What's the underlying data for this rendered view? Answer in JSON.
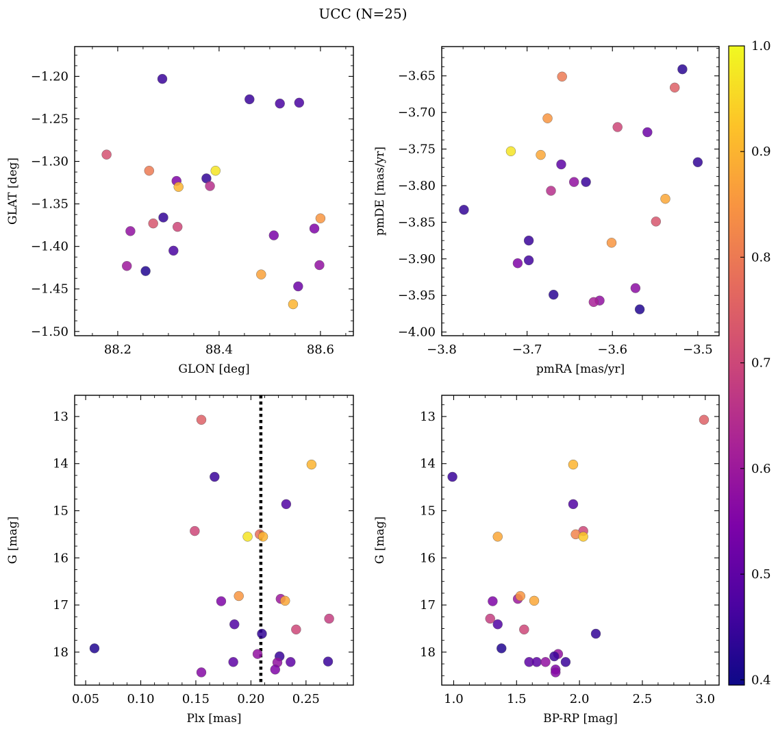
{
  "figure": {
    "title": "UCC (N=25)"
  },
  "colorbar": {
    "range": [
      0.395,
      1.0
    ],
    "ticks": [
      0.4,
      0.5,
      0.6,
      0.7,
      0.8,
      0.9,
      1.0
    ],
    "tick_labels": [
      "0.4",
      "0.5",
      "0.6",
      "0.7",
      "0.8",
      "0.9",
      "1.0"
    ],
    "colormap": "plasma"
  },
  "chart_data": [
    {
      "type": "scatter",
      "xlabel": "GLON [deg]",
      "ylabel": "GLAT [deg]",
      "xlim": [
        88.115,
        88.665
      ],
      "ylim": [
        -1.505,
        -1.165
      ],
      "y_inverted": false,
      "xticks": [
        88.2,
        88.4,
        88.6
      ],
      "xtick_labels": [
        "88.2",
        "88.4",
        "88.6"
      ],
      "yticks": [
        -1.5,
        -1.45,
        -1.4,
        -1.35,
        -1.3,
        -1.25,
        -1.2
      ],
      "ytick_labels": [
        "−1.50",
        "−1.45",
        "−1.40",
        "−1.35",
        "−1.30",
        "−1.25",
        "−1.20"
      ],
      "points": [
        {
          "x": 88.288,
          "y": -1.203,
          "c": 0.45
        },
        {
          "x": 88.46,
          "y": -1.227,
          "c": 0.45
        },
        {
          "x": 88.52,
          "y": -1.232,
          "c": 0.47
        },
        {
          "x": 88.558,
          "y": -1.231,
          "c": 0.47
        },
        {
          "x": 88.178,
          "y": -1.292,
          "c": 0.72
        },
        {
          "x": 88.262,
          "y": -1.311,
          "c": 0.8
        },
        {
          "x": 88.393,
          "y": -1.311,
          "c": 0.97
        },
        {
          "x": 88.316,
          "y": -1.323,
          "c": 0.55
        },
        {
          "x": 88.375,
          "y": -1.32,
          "c": 0.44
        },
        {
          "x": 88.32,
          "y": -1.33,
          "c": 0.9
        },
        {
          "x": 88.382,
          "y": -1.329,
          "c": 0.65
        },
        {
          "x": 88.29,
          "y": -1.366,
          "c": 0.44
        },
        {
          "x": 88.27,
          "y": -1.373,
          "c": 0.73
        },
        {
          "x": 88.318,
          "y": -1.377,
          "c": 0.7
        },
        {
          "x": 88.225,
          "y": -1.382,
          "c": 0.58
        },
        {
          "x": 88.588,
          "y": -1.379,
          "c": 0.55
        },
        {
          "x": 88.6,
          "y": -1.367,
          "c": 0.85
        },
        {
          "x": 88.508,
          "y": -1.387,
          "c": 0.54
        },
        {
          "x": 88.31,
          "y": -1.405,
          "c": 0.47
        },
        {
          "x": 88.218,
          "y": -1.423,
          "c": 0.6
        },
        {
          "x": 88.255,
          "y": -1.429,
          "c": 0.42
        },
        {
          "x": 88.598,
          "y": -1.422,
          "c": 0.58
        },
        {
          "x": 88.483,
          "y": -1.433,
          "c": 0.87
        },
        {
          "x": 88.556,
          "y": -1.447,
          "c": 0.52
        },
        {
          "x": 88.546,
          "y": -1.468,
          "c": 0.9
        }
      ]
    },
    {
      "type": "scatter",
      "xlabel": "pmRA [mas/yr]",
      "ylabel": "pmDE [mas/yr]",
      "xlim": [
        -3.8,
        -3.475
      ],
      "ylim": [
        -4.005,
        -3.61
      ],
      "y_inverted": false,
      "xticks": [
        -3.8,
        -3.7,
        -3.6,
        -3.5
      ],
      "xtick_labels": [
        "−3.8",
        "−3.7",
        "−3.6",
        "−3.5"
      ],
      "yticks": [
        -4.0,
        -3.95,
        -3.9,
        -3.85,
        -3.8,
        -3.75,
        -3.7,
        -3.65
      ],
      "ytick_labels": [
        "−4.00",
        "−3.95",
        "−3.90",
        "−3.85",
        "−3.80",
        "−3.75",
        "−3.70",
        "−3.65"
      ],
      "points": [
        {
          "x": -3.518,
          "y": -3.641,
          "c": 0.43
        },
        {
          "x": -3.659,
          "y": -3.651,
          "c": 0.8
        },
        {
          "x": -3.527,
          "y": -3.666,
          "c": 0.75
        },
        {
          "x": -3.676,
          "y": -3.708,
          "c": 0.85
        },
        {
          "x": -3.594,
          "y": -3.72,
          "c": 0.7
        },
        {
          "x": -3.559,
          "y": -3.727,
          "c": 0.52
        },
        {
          "x": -3.719,
          "y": -3.753,
          "c": 0.97
        },
        {
          "x": -3.684,
          "y": -3.758,
          "c": 0.88
        },
        {
          "x": -3.5,
          "y": -3.768,
          "c": 0.44
        },
        {
          "x": -3.66,
          "y": -3.771,
          "c": 0.5
        },
        {
          "x": -3.645,
          "y": -3.795,
          "c": 0.58
        },
        {
          "x": -3.631,
          "y": -3.795,
          "c": 0.45
        },
        {
          "x": -3.672,
          "y": -3.807,
          "c": 0.65
        },
        {
          "x": -3.774,
          "y": -3.833,
          "c": 0.44
        },
        {
          "x": -3.538,
          "y": -3.818,
          "c": 0.88
        },
        {
          "x": -3.549,
          "y": -3.849,
          "c": 0.73
        },
        {
          "x": -3.698,
          "y": -3.875,
          "c": 0.45
        },
        {
          "x": -3.601,
          "y": -3.878,
          "c": 0.85
        },
        {
          "x": -3.711,
          "y": -3.906,
          "c": 0.55
        },
        {
          "x": -3.698,
          "y": -3.902,
          "c": 0.46
        },
        {
          "x": -3.669,
          "y": -3.949,
          "c": 0.43
        },
        {
          "x": -3.573,
          "y": -3.94,
          "c": 0.57
        },
        {
          "x": -3.615,
          "y": -3.957,
          "c": 0.58
        },
        {
          "x": -3.622,
          "y": -3.959,
          "c": 0.62
        },
        {
          "x": -3.568,
          "y": -3.969,
          "c": 0.42
        }
      ]
    },
    {
      "type": "scatter",
      "xlabel": "Plx [mas]",
      "ylabel": "G [mag]",
      "xlim": [
        0.04,
        0.293
      ],
      "ylim": [
        12.55,
        18.7
      ],
      "y_inverted": true,
      "xticks": [
        0.05,
        0.1,
        0.15,
        0.2,
        0.25
      ],
      "xtick_labels": [
        "0.05",
        "0.10",
        "0.15",
        "0.20",
        "0.25"
      ],
      "yticks": [
        13,
        14,
        15,
        16,
        17,
        18
      ],
      "ytick_labels": [
        "13",
        "14",
        "15",
        "16",
        "17",
        "18"
      ],
      "vline": {
        "x": 0.209,
        "style": "dotted"
      },
      "points": [
        {
          "x": 0.155,
          "y": 13.07,
          "c": 0.75
        },
        {
          "x": 0.255,
          "y": 14.02,
          "c": 0.9
        },
        {
          "x": 0.167,
          "y": 14.28,
          "c": 0.45
        },
        {
          "x": 0.232,
          "y": 14.86,
          "c": 0.48
        },
        {
          "x": 0.149,
          "y": 15.43,
          "c": 0.7
        },
        {
          "x": 0.197,
          "y": 15.55,
          "c": 0.97
        },
        {
          "x": 0.208,
          "y": 15.5,
          "c": 0.78
        },
        {
          "x": 0.211,
          "y": 15.55,
          "c": 0.9
        },
        {
          "x": 0.173,
          "y": 16.92,
          "c": 0.55
        },
        {
          "x": 0.189,
          "y": 16.81,
          "c": 0.85
        },
        {
          "x": 0.227,
          "y": 16.87,
          "c": 0.6
        },
        {
          "x": 0.231,
          "y": 16.91,
          "c": 0.88
        },
        {
          "x": 0.271,
          "y": 17.29,
          "c": 0.68
        },
        {
          "x": 0.185,
          "y": 17.41,
          "c": 0.48
        },
        {
          "x": 0.241,
          "y": 17.52,
          "c": 0.7
        },
        {
          "x": 0.21,
          "y": 17.61,
          "c": 0.44
        },
        {
          "x": 0.058,
          "y": 17.92,
          "c": 0.42
        },
        {
          "x": 0.206,
          "y": 18.04,
          "c": 0.58
        },
        {
          "x": 0.226,
          "y": 18.09,
          "c": 0.45
        },
        {
          "x": 0.184,
          "y": 18.21,
          "c": 0.5
        },
        {
          "x": 0.224,
          "y": 18.22,
          "c": 0.58
        },
        {
          "x": 0.236,
          "y": 18.21,
          "c": 0.5
        },
        {
          "x": 0.27,
          "y": 18.2,
          "c": 0.45
        },
        {
          "x": 0.222,
          "y": 18.37,
          "c": 0.55
        },
        {
          "x": 0.155,
          "y": 18.43,
          "c": 0.56
        }
      ]
    },
    {
      "type": "scatter",
      "xlabel": "BP-RP [mag]",
      "ylabel": "G [mag]",
      "xlim": [
        0.905,
        3.11
      ],
      "ylim": [
        12.55,
        18.7
      ],
      "y_inverted": true,
      "xticks": [
        1.0,
        1.5,
        2.0,
        2.5,
        3.0
      ],
      "xtick_labels": [
        "1.0",
        "1.5",
        "2.0",
        "2.5",
        "3.0"
      ],
      "yticks": [
        13,
        14,
        15,
        16,
        17,
        18
      ],
      "ytick_labels": [
        "13",
        "14",
        "15",
        "16",
        "17",
        "18"
      ],
      "points": [
        {
          "x": 2.99,
          "y": 13.07,
          "c": 0.75
        },
        {
          "x": 1.95,
          "y": 14.02,
          "c": 0.9
        },
        {
          "x": 0.99,
          "y": 14.28,
          "c": 0.45
        },
        {
          "x": 1.95,
          "y": 14.86,
          "c": 0.48
        },
        {
          "x": 2.03,
          "y": 15.43,
          "c": 0.7
        },
        {
          "x": 1.97,
          "y": 15.5,
          "c": 0.82
        },
        {
          "x": 2.03,
          "y": 15.55,
          "c": 0.93
        },
        {
          "x": 1.35,
          "y": 15.55,
          "c": 0.88
        },
        {
          "x": 1.31,
          "y": 16.92,
          "c": 0.55
        },
        {
          "x": 1.51,
          "y": 16.87,
          "c": 0.6
        },
        {
          "x": 1.53,
          "y": 16.81,
          "c": 0.85
        },
        {
          "x": 1.64,
          "y": 16.91,
          "c": 0.88
        },
        {
          "x": 1.29,
          "y": 17.29,
          "c": 0.68
        },
        {
          "x": 1.35,
          "y": 17.41,
          "c": 0.48
        },
        {
          "x": 1.56,
          "y": 17.52,
          "c": 0.7
        },
        {
          "x": 2.13,
          "y": 17.61,
          "c": 0.44
        },
        {
          "x": 1.38,
          "y": 17.92,
          "c": 0.42
        },
        {
          "x": 1.83,
          "y": 18.04,
          "c": 0.58
        },
        {
          "x": 1.8,
          "y": 18.09,
          "c": 0.45
        },
        {
          "x": 1.6,
          "y": 18.21,
          "c": 0.5
        },
        {
          "x": 1.66,
          "y": 18.21,
          "c": 0.5
        },
        {
          "x": 1.73,
          "y": 18.21,
          "c": 0.58
        },
        {
          "x": 1.89,
          "y": 18.21,
          "c": 0.45
        },
        {
          "x": 1.81,
          "y": 18.37,
          "c": 0.55
        },
        {
          "x": 1.81,
          "y": 18.43,
          "c": 0.56
        }
      ]
    }
  ]
}
